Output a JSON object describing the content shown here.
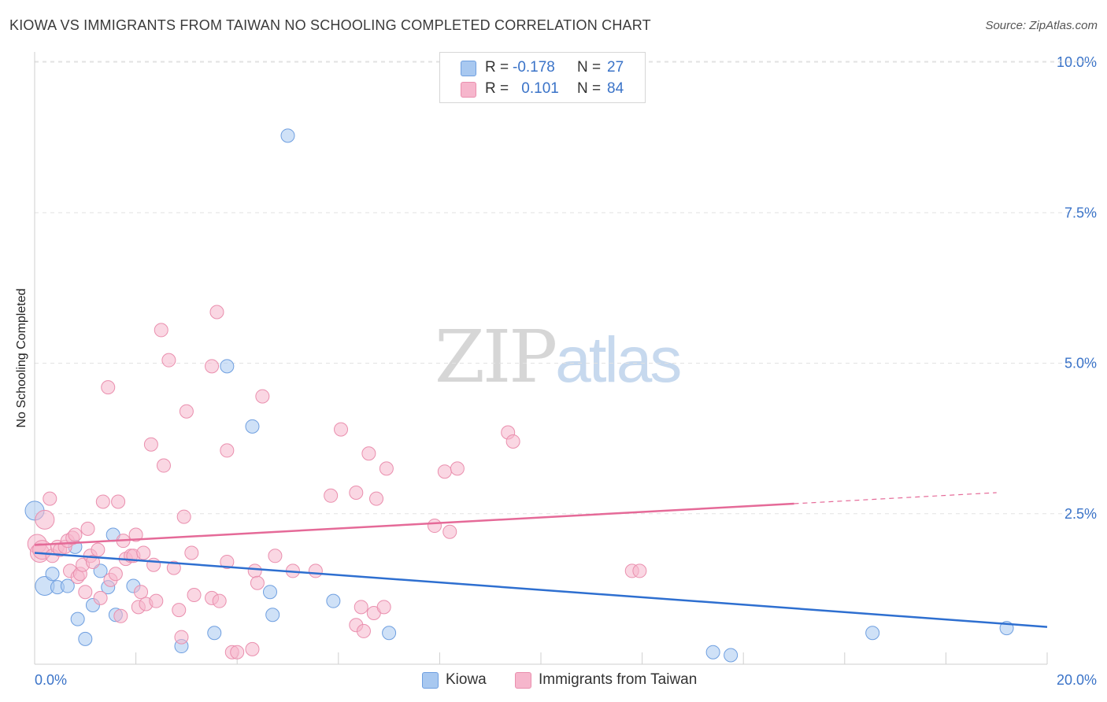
{
  "title": "KIOWA VS IMMIGRANTS FROM TAIWAN NO SCHOOLING COMPLETED CORRELATION CHART",
  "source": "Source: ZipAtlas.com",
  "watermark": {
    "zip": "ZIP",
    "atlas": "atlas"
  },
  "legend_top": {
    "rows": [
      {
        "r_label": "R = ",
        "r_value": "-0.178",
        "n_label": "N = ",
        "n_value": "27",
        "color": "#a8c8f0"
      },
      {
        "r_label": "R = ",
        "r_value": " 0.101",
        "n_label": "N = ",
        "n_value": "84",
        "color": "#f6b6cc"
      }
    ]
  },
  "legend_bottom": [
    {
      "label": "Kiowa",
      "color": "#a8c8f0"
    },
    {
      "label": "Immigrants from Taiwan",
      "color": "#f6b6cc"
    }
  ],
  "chart_data": {
    "type": "scatter",
    "title": "KIOWA VS IMMIGRANTS FROM TAIWAN NO SCHOOLING COMPLETED CORRELATION CHART",
    "xlabel": "",
    "ylabel": "No Schooling Completed",
    "xlim": [
      0,
      20
    ],
    "ylim": [
      0,
      10.5
    ],
    "x_tick_labels": [
      "0.0%",
      "20.0%"
    ],
    "y_ticks": [
      2.5,
      5.0,
      7.5,
      10.0
    ],
    "y_tick_labels": [
      "2.5%",
      "5.0%",
      "7.5%",
      "10.0%"
    ],
    "grid": true,
    "series": [
      {
        "name": "Kiowa",
        "color": "#a8c8f0",
        "stroke": "#6f9fe0",
        "trend_color": "#2e6fd0",
        "trend": {
          "x0": 0,
          "y0": 1.85,
          "x1": 20,
          "y1": 0.62,
          "dash_from": null
        },
        "points": [
          [
            0.0,
            2.55
          ],
          [
            0.2,
            1.3
          ],
          [
            0.35,
            1.5
          ],
          [
            0.45,
            1.28
          ],
          [
            0.65,
            1.3
          ],
          [
            0.8,
            1.95
          ],
          [
            0.85,
            0.75
          ],
          [
            1.0,
            0.42
          ],
          [
            1.15,
            0.98
          ],
          [
            1.3,
            1.55
          ],
          [
            1.45,
            1.28
          ],
          [
            1.55,
            2.15
          ],
          [
            1.6,
            0.82
          ],
          [
            1.95,
            1.3
          ],
          [
            2.9,
            0.3
          ],
          [
            3.55,
            0.52
          ],
          [
            3.8,
            4.95
          ],
          [
            4.3,
            3.95
          ],
          [
            4.65,
            1.2
          ],
          [
            4.7,
            0.82
          ],
          [
            5.0,
            8.78
          ],
          [
            5.9,
            1.05
          ],
          [
            7.0,
            0.52
          ],
          [
            13.4,
            0.2
          ],
          [
            13.75,
            0.15
          ],
          [
            16.55,
            0.52
          ],
          [
            19.2,
            0.6
          ]
        ]
      },
      {
        "name": "Immigrants from Taiwan",
        "color": "#f6b6cc",
        "stroke": "#ea8fae",
        "trend_color": "#e56a98",
        "trend": {
          "x0": 0,
          "y0": 1.98,
          "x1": 19.0,
          "y1": 2.85,
          "dash_from": 15.0
        },
        "points": [
          [
            0.05,
            2.0
          ],
          [
            0.1,
            1.85
          ],
          [
            0.15,
            1.9
          ],
          [
            0.2,
            2.4
          ],
          [
            0.3,
            2.75
          ],
          [
            0.35,
            1.8
          ],
          [
            0.45,
            1.95
          ],
          [
            0.5,
            1.9
          ],
          [
            0.6,
            1.95
          ],
          [
            0.65,
            2.05
          ],
          [
            0.7,
            1.55
          ],
          [
            0.75,
            2.1
          ],
          [
            0.8,
            2.15
          ],
          [
            0.85,
            1.45
          ],
          [
            0.9,
            1.5
          ],
          [
            0.95,
            1.65
          ],
          [
            1.0,
            1.2
          ],
          [
            1.05,
            2.25
          ],
          [
            1.1,
            1.8
          ],
          [
            1.15,
            1.7
          ],
          [
            1.25,
            1.9
          ],
          [
            1.3,
            1.1
          ],
          [
            1.35,
            2.7
          ],
          [
            1.45,
            4.6
          ],
          [
            1.5,
            1.4
          ],
          [
            1.6,
            1.5
          ],
          [
            1.65,
            2.7
          ],
          [
            1.7,
            0.8
          ],
          [
            1.75,
            2.05
          ],
          [
            1.8,
            1.75
          ],
          [
            1.9,
            1.8
          ],
          [
            1.95,
            1.8
          ],
          [
            2.0,
            2.15
          ],
          [
            2.05,
            0.95
          ],
          [
            2.1,
            1.2
          ],
          [
            2.15,
            1.85
          ],
          [
            2.2,
            1.0
          ],
          [
            2.3,
            3.65
          ],
          [
            2.35,
            1.65
          ],
          [
            2.4,
            1.05
          ],
          [
            2.5,
            5.55
          ],
          [
            2.55,
            3.3
          ],
          [
            2.65,
            5.05
          ],
          [
            2.75,
            1.6
          ],
          [
            2.85,
            0.9
          ],
          [
            2.9,
            0.45
          ],
          [
            2.95,
            2.45
          ],
          [
            3.0,
            4.2
          ],
          [
            3.1,
            1.85
          ],
          [
            3.15,
            1.15
          ],
          [
            3.5,
            4.95
          ],
          [
            3.5,
            1.1
          ],
          [
            3.6,
            5.85
          ],
          [
            3.65,
            1.05
          ],
          [
            3.8,
            1.7
          ],
          [
            3.8,
            3.55
          ],
          [
            3.9,
            0.2
          ],
          [
            4.0,
            0.2
          ],
          [
            4.3,
            0.25
          ],
          [
            4.35,
            1.55
          ],
          [
            4.4,
            1.35
          ],
          [
            4.5,
            4.45
          ],
          [
            4.75,
            1.8
          ],
          [
            5.1,
            1.55
          ],
          [
            5.55,
            1.55
          ],
          [
            5.85,
            2.8
          ],
          [
            6.05,
            3.9
          ],
          [
            6.35,
            2.85
          ],
          [
            6.35,
            0.65
          ],
          [
            6.45,
            0.95
          ],
          [
            6.5,
            0.55
          ],
          [
            6.6,
            3.5
          ],
          [
            6.7,
            0.85
          ],
          [
            6.75,
            2.75
          ],
          [
            6.9,
            0.95
          ],
          [
            6.95,
            3.25
          ],
          [
            7.9,
            2.3
          ],
          [
            8.1,
            3.2
          ],
          [
            8.2,
            2.2
          ],
          [
            8.35,
            3.25
          ],
          [
            9.35,
            3.85
          ],
          [
            9.45,
            3.7
          ],
          [
            11.8,
            1.55
          ],
          [
            11.95,
            1.55
          ]
        ]
      }
    ]
  }
}
